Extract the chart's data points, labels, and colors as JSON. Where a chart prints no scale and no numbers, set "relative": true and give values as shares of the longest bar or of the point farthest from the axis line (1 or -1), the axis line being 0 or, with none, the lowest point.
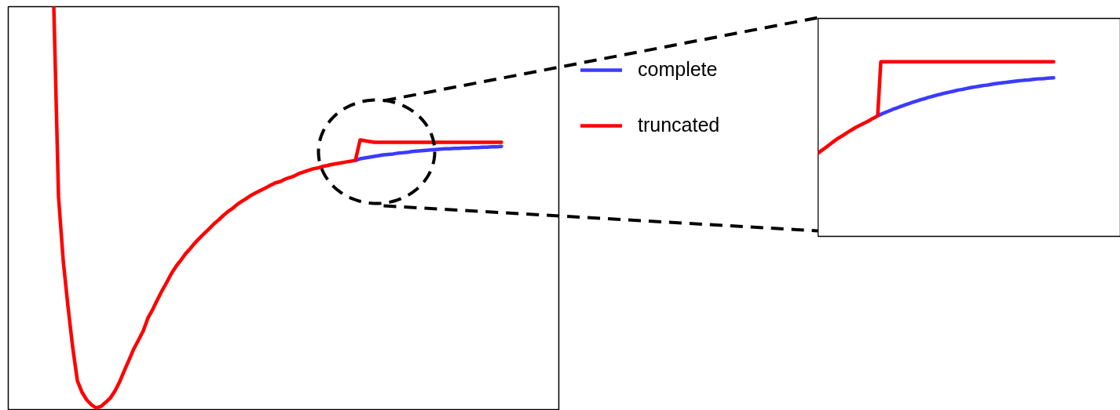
{
  "chart_data": [
    {
      "type": "line",
      "relative": true,
      "legend": "top right",
      "categories": [
        null,
        null,
        null,
        null,
        null,
        null,
        null,
        null,
        null,
        null,
        null,
        null,
        null,
        null,
        null,
        null,
        null,
        null,
        null,
        null,
        null,
        null,
        null,
        null,
        null,
        null,
        null,
        null,
        null,
        null,
        null,
        null,
        null,
        null,
        null,
        null,
        null,
        null,
        null,
        null,
        null,
        null,
        null,
        null,
        null,
        null,
        null,
        null,
        null,
        null,
        null,
        null,
        null,
        null,
        null,
        null,
        null,
        null,
        null,
        null,
        null,
        null,
        null,
        null,
        null,
        null,
        null,
        null,
        null,
        null,
        null,
        null,
        null,
        null,
        null,
        null,
        null,
        null,
        null,
        null,
        null,
        null,
        null,
        null,
        null,
        null,
        null,
        null,
        null,
        null,
        null,
        null,
        null,
        null,
        null,
        null
      ],
      "series": [
        {
          "name": "complete",
          "color": "#3b3bff",
          "values": [
            null,
            null,
            null,
            null,
            null,
            null,
            null,
            null,
            null,
            null,
            null,
            null,
            null,
            null,
            null,
            null,
            null,
            null,
            null,
            null,
            null,
            null,
            null,
            null,
            null,
            null,
            null,
            null,
            null,
            null,
            null,
            null,
            null,
            null,
            null,
            null,
            null,
            null,
            null,
            null,
            null,
            null,
            null,
            null,
            null,
            null,
            null,
            null,
            null,
            null,
            null,
            null,
            null,
            null,
            null,
            null,
            null,
            null,
            null,
            null,
            null,
            null,
            null,
            null,
            0.617,
            0.621,
            0.623,
            0.625,
            0.627,
            0.629,
            0.631,
            0.632,
            0.633,
            0.635,
            0.636,
            0.637,
            0.639,
            0.64,
            0.641,
            0.642,
            0.643,
            0.644,
            0.645,
            0.646,
            0.646,
            0.647,
            0.647,
            0.648,
            0.648,
            0.649,
            0.649,
            0.65,
            0.65,
            0.651,
            0.651,
            0.652
          ]
        },
        {
          "name": "truncated",
          "color": "#ff0000",
          "values": [
            1,
            0.527,
            0.367,
            0.254,
            0.152,
            0.068,
            0.039,
            0.02,
            0.008,
            0,
            0.004,
            0.014,
            0.025,
            0.043,
            0.066,
            0.094,
            0.121,
            0.148,
            0.17,
            0.193,
            0.225,
            0.246,
            0.27,
            0.293,
            0.314,
            0.336,
            0.354,
            0.369,
            0.385,
            0.398,
            0.412,
            0.424,
            0.436,
            0.447,
            0.459,
            0.469,
            0.48,
            0.49,
            0.498,
            0.508,
            0.516,
            0.523,
            0.531,
            0.537,
            0.543,
            0.549,
            0.555,
            0.561,
            0.564,
            0.57,
            0.574,
            0.578,
            0.584,
            0.588,
            0.592,
            0.596,
            0.598,
            0.602,
            0.604,
            0.607,
            0.609,
            0.611,
            0.613,
            0.615,
            0.617,
            0.668,
            0.666,
            0.664,
            0.662,
            0.662,
            0.662,
            0.662,
            0.662,
            0.662,
            0.662,
            0.662,
            0.662,
            0.662,
            0.662,
            0.662,
            0.662,
            0.662,
            0.662,
            0.662,
            0.662,
            0.662,
            0.662,
            0.662,
            0.662,
            0.662,
            0.662,
            0.662,
            0.662,
            0.662,
            0.662,
            0.662
          ]
        }
      ]
    },
    {
      "type": "line",
      "relative": true,
      "categories": [
        null,
        null,
        null,
        null,
        null,
        null,
        null,
        null,
        null,
        null,
        null,
        null,
        null,
        null,
        null,
        null,
        null,
        null,
        null,
        null,
        null,
        null,
        null,
        null,
        null,
        null,
        null,
        null,
        null,
        null,
        null,
        null,
        null,
        null,
        null,
        null,
        null,
        null,
        null,
        null,
        null,
        null,
        null,
        null,
        null,
        null,
        null,
        null,
        null,
        null,
        null,
        null,
        null,
        null,
        null,
        null,
        null,
        null,
        null,
        null,
        null,
        null,
        null,
        null,
        null,
        null,
        null,
        null,
        null,
        null,
        null,
        null,
        null,
        null,
        null,
        null
      ],
      "series": [
        {
          "color": "#3b3bff",
          "values": [
            null,
            null,
            null,
            null,
            null,
            null,
            null,
            null,
            null,
            null,
            null,
            null,
            null,
            null,
            null,
            null,
            null,
            null,
            null,
            0.691,
            0.699,
            0.707,
            0.714,
            0.721,
            0.729,
            0.735,
            0.742,
            0.748,
            0.755,
            0.761,
            0.767,
            0.773,
            0.779,
            0.784,
            0.789,
            0.795,
            0.8,
            0.805,
            0.81,
            0.814,
            0.819,
            0.823,
            0.827,
            0.831,
            0.835,
            0.839,
            0.842,
            0.846,
            0.85,
            0.853,
            0.856,
            0.859,
            0.862,
            0.865,
            0.867,
            0.87,
            0.873,
            0.876,
            0.878,
            0.88,
            0.882,
            0.885,
            0.887,
            0.889,
            0.891,
            0.893,
            0.895,
            0.896,
            0.898,
            0.9,
            0.902,
            0.903,
            0.904,
            0.906,
            0.907,
            0.908
          ]
        },
        {
          "color": "#ff0000",
          "values": [
            0.476,
            0.49,
            0.503,
            0.516,
            0.53,
            0.544,
            0.557,
            0.568,
            0.579,
            0.591,
            0.602,
            0.613,
            0.624,
            0.633,
            0.642,
            0.651,
            0.66,
            0.671,
            0.68,
            0.691,
            1,
            1,
            1,
            1,
            1,
            1,
            1,
            1,
            1,
            1,
            1,
            1,
            1,
            1,
            1,
            1,
            1,
            1,
            1,
            1,
            1,
            1,
            1,
            1,
            1,
            1,
            1,
            1,
            1,
            1,
            1,
            1,
            1,
            1,
            1,
            1,
            1,
            1,
            1,
            1,
            1,
            1,
            1,
            1,
            1,
            1,
            1,
            1,
            1,
            1,
            1,
            1,
            1,
            1,
            1,
            1
          ]
        }
      ]
    }
  ]
}
